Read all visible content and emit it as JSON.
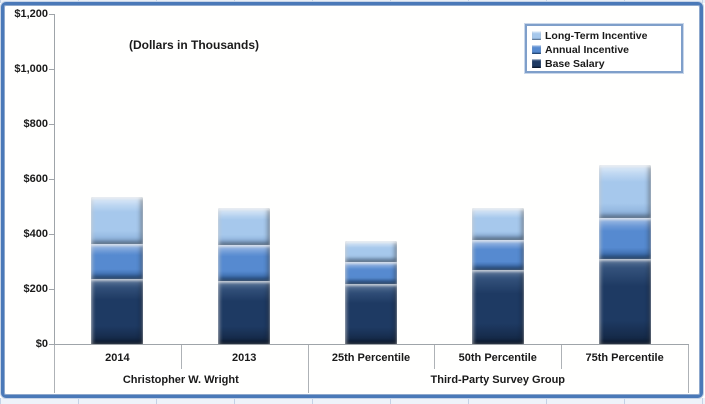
{
  "chart_data": {
    "type": "bar",
    "stacked": true,
    "note": "(Dollars in Thousands)",
    "units": "Dollars in Thousands",
    "categories": [
      "2014",
      "2013",
      "25th Percentile",
      "50th Percentile",
      "75th Percentile"
    ],
    "groups": [
      {
        "label": "Christopher W. Wright",
        "span": 2
      },
      {
        "label": "Third-Party Survey Group",
        "span": 3
      }
    ],
    "series": [
      {
        "name": "Base Salary",
        "color": "#1e3a63",
        "highlight": "#3f5e88",
        "shadow": "#12243f",
        "values": [
          235,
          230,
          220,
          270,
          310
        ]
      },
      {
        "name": "Annual Incentive",
        "color": "#568ad0",
        "highlight": "#8fb2e2",
        "shadow": "#30609e",
        "values": [
          130,
          130,
          80,
          110,
          150
        ]
      },
      {
        "name": "Long-Term Incentive",
        "color": "#a6c8ec",
        "highlight": "#d9e8f8",
        "shadow": "#84aad6",
        "values": [
          170,
          135,
          75,
          115,
          190
        ]
      }
    ],
    "totals": [
      535,
      495,
      375,
      495,
      650
    ],
    "legend_order": [
      "Long-Term Incentive",
      "Annual Incentive",
      "Base Salary"
    ],
    "y_axis": {
      "tick_labels": [
        "$1,200",
        "$1,000",
        "$800",
        "$600",
        "$400",
        "$200",
        "$0"
      ],
      "tick_values": [
        1200,
        1000,
        800,
        600,
        400,
        200,
        0
      ],
      "min": 0,
      "max": 1200,
      "gridlines": false
    },
    "legend_position": "top-right"
  },
  "colors": {
    "frame_border": "#4a79b8",
    "axis_line": "#9fa4a9",
    "text": "#1a1a1a",
    "background": "#ffffff"
  }
}
